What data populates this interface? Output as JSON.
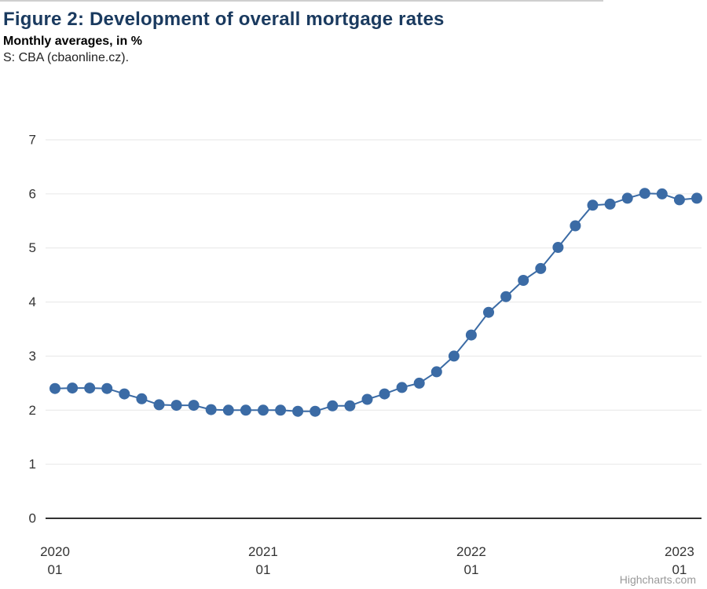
{
  "header": {
    "title": "Figure 2: Development of overall mortgage rates",
    "subtitle": "Monthly averages, in %",
    "source": "S: CBA (cbaonline.cz)."
  },
  "credit": "Highcharts.com",
  "colors": {
    "title": "#1a3a5f",
    "series": "#3b6ba5",
    "grid": "#e6e6e6",
    "axis_line": "#333333",
    "axis_label": "#333333",
    "credit": "#999999"
  },
  "chart_data": {
    "type": "line",
    "title": "Figure 2: Development of overall mortgage rates",
    "subtitle": "Monthly averages, in %",
    "xlabel": "",
    "ylabel": "",
    "ylim": [
      0,
      7
    ],
    "yticks": [
      0,
      1,
      2,
      3,
      4,
      5,
      6,
      7
    ],
    "grid": "horizontal-only",
    "legend": "none",
    "marker": "circle",
    "x": [
      "2020-01",
      "2020-02",
      "2020-03",
      "2020-04",
      "2020-05",
      "2020-06",
      "2020-07",
      "2020-08",
      "2020-09",
      "2020-10",
      "2020-11",
      "2020-12",
      "2021-01",
      "2021-02",
      "2021-03",
      "2021-04",
      "2021-05",
      "2021-06",
      "2021-07",
      "2021-08",
      "2021-09",
      "2021-10",
      "2021-11",
      "2021-12",
      "2022-01",
      "2022-02",
      "2022-03",
      "2022-04",
      "2022-05",
      "2022-06",
      "2022-07",
      "2022-08",
      "2022-09",
      "2022-10",
      "2022-11",
      "2022-12",
      "2023-01",
      "2023-02"
    ],
    "values": [
      2.4,
      2.41,
      2.41,
      2.4,
      2.3,
      2.21,
      2.1,
      2.09,
      2.09,
      2.01,
      2.0,
      2.0,
      2.0,
      2.0,
      1.98,
      1.98,
      2.08,
      2.08,
      2.2,
      2.3,
      2.42,
      2.5,
      2.71,
      3.0,
      3.39,
      3.81,
      4.1,
      4.4,
      4.62,
      5.01,
      5.41,
      5.79,
      5.81,
      5.92,
      6.01,
      6.0,
      5.89,
      5.92
    ],
    "xticks": [
      {
        "index": 0,
        "lines": [
          "2020",
          "01"
        ]
      },
      {
        "index": 12,
        "lines": [
          "2021",
          "01"
        ]
      },
      {
        "index": 24,
        "lines": [
          "2022",
          "01"
        ]
      },
      {
        "index": 36,
        "lines": [
          "2023",
          "01"
        ]
      }
    ]
  }
}
